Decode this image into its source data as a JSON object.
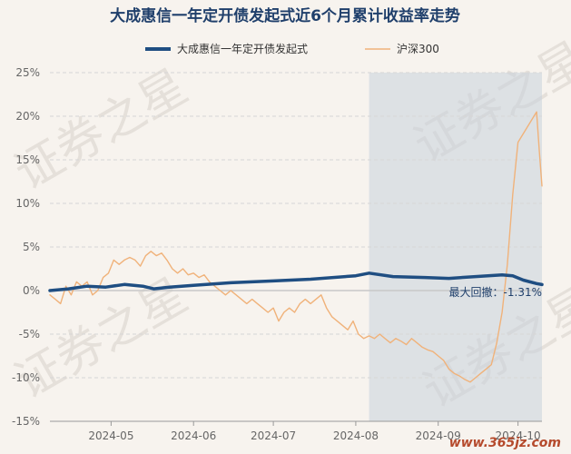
{
  "watermark": "证券之星",
  "site_mark": "www.365jz.com",
  "chart_data": {
    "type": "line",
    "title": "大成惠信一年定开债发起式近6个月累计收益率走势",
    "xlabel": "",
    "ylabel": "",
    "ylim": [
      -15,
      25
    ],
    "yticks": [
      25,
      20,
      15,
      10,
      5,
      0,
      -5,
      -10,
      -15
    ],
    "ytick_labels": [
      "25%",
      "20%",
      "15%",
      "10%",
      "5%",
      "0%",
      "-5%",
      "-10%",
      "-15%"
    ],
    "x_range": [
      "2024-04-08",
      "2024-10-10"
    ],
    "xtick_labels": [
      "2024-05",
      "2024-06",
      "2024-07",
      "2024-08",
      "2024-09",
      "2024-10"
    ],
    "xtick_dates": [
      "2024-05-01",
      "2024-06-01",
      "2024-07-01",
      "2024-08-01",
      "2024-09-01",
      "2024-10-01"
    ],
    "grid": true,
    "legend_position": "top-center",
    "shaded_region": {
      "start": "2024-08-06",
      "end": "2024-10-10"
    },
    "annotation": "最大回撤：-1.31%",
    "series": [
      {
        "name": "大成惠信一年定开债发起式",
        "color": "#1f4e82",
        "points": [
          [
            "2024-04-08",
            0.0
          ],
          [
            "2024-04-15",
            0.2
          ],
          [
            "2024-04-22",
            0.5
          ],
          [
            "2024-04-29",
            0.4
          ],
          [
            "2024-05-06",
            0.7
          ],
          [
            "2024-05-13",
            0.5
          ],
          [
            "2024-05-17",
            0.2
          ],
          [
            "2024-05-23",
            0.4
          ],
          [
            "2024-06-01",
            0.6
          ],
          [
            "2024-06-15",
            0.9
          ],
          [
            "2024-07-01",
            1.1
          ],
          [
            "2024-07-15",
            1.3
          ],
          [
            "2024-08-01",
            1.7
          ],
          [
            "2024-08-06",
            2.0
          ],
          [
            "2024-08-15",
            1.6
          ],
          [
            "2024-08-27",
            1.5
          ],
          [
            "2024-09-05",
            1.4
          ],
          [
            "2024-09-15",
            1.6
          ],
          [
            "2024-09-25",
            1.8
          ],
          [
            "2024-09-29",
            1.7
          ],
          [
            "2024-10-03",
            1.2
          ],
          [
            "2024-10-08",
            0.8
          ],
          [
            "2024-10-10",
            0.69
          ]
        ]
      },
      {
        "name": "沪深300",
        "color": "#f0b27a",
        "points": [
          [
            "2024-04-08",
            -0.5
          ],
          [
            "2024-04-10",
            -1.0
          ],
          [
            "2024-04-12",
            -1.5
          ],
          [
            "2024-04-14",
            0.5
          ],
          [
            "2024-04-16",
            -0.5
          ],
          [
            "2024-04-18",
            1.0
          ],
          [
            "2024-04-20",
            0.5
          ],
          [
            "2024-04-22",
            1.0
          ],
          [
            "2024-04-24",
            -0.5
          ],
          [
            "2024-04-26",
            0.0
          ],
          [
            "2024-04-28",
            1.5
          ],
          [
            "2024-04-30",
            2.0
          ],
          [
            "2024-05-02",
            3.5
          ],
          [
            "2024-05-04",
            3.0
          ],
          [
            "2024-05-06",
            3.5
          ],
          [
            "2024-05-08",
            3.8
          ],
          [
            "2024-05-10",
            3.5
          ],
          [
            "2024-05-12",
            2.8
          ],
          [
            "2024-05-14",
            4.0
          ],
          [
            "2024-05-16",
            4.5
          ],
          [
            "2024-05-18",
            4.0
          ],
          [
            "2024-05-20",
            4.3
          ],
          [
            "2024-05-22",
            3.5
          ],
          [
            "2024-05-24",
            2.5
          ],
          [
            "2024-05-26",
            2.0
          ],
          [
            "2024-05-28",
            2.5
          ],
          [
            "2024-05-30",
            1.8
          ],
          [
            "2024-06-01",
            2.0
          ],
          [
            "2024-06-03",
            1.5
          ],
          [
            "2024-06-05",
            1.8
          ],
          [
            "2024-06-07",
            1.0
          ],
          [
            "2024-06-09",
            0.5
          ],
          [
            "2024-06-11",
            0.0
          ],
          [
            "2024-06-13",
            -0.5
          ],
          [
            "2024-06-15",
            0.0
          ],
          [
            "2024-06-17",
            -0.5
          ],
          [
            "2024-06-19",
            -1.0
          ],
          [
            "2024-06-21",
            -1.5
          ],
          [
            "2024-06-23",
            -1.0
          ],
          [
            "2024-06-25",
            -1.5
          ],
          [
            "2024-06-27",
            -2.0
          ],
          [
            "2024-06-29",
            -2.5
          ],
          [
            "2024-07-01",
            -2.0
          ],
          [
            "2024-07-03",
            -3.5
          ],
          [
            "2024-07-05",
            -2.5
          ],
          [
            "2024-07-07",
            -2.0
          ],
          [
            "2024-07-09",
            -2.5
          ],
          [
            "2024-07-11",
            -1.5
          ],
          [
            "2024-07-13",
            -1.0
          ],
          [
            "2024-07-15",
            -1.5
          ],
          [
            "2024-07-17",
            -1.0
          ],
          [
            "2024-07-19",
            -0.5
          ],
          [
            "2024-07-21",
            -2.0
          ],
          [
            "2024-07-23",
            -3.0
          ],
          [
            "2024-07-25",
            -3.5
          ],
          [
            "2024-07-27",
            -4.0
          ],
          [
            "2024-07-29",
            -4.5
          ],
          [
            "2024-07-31",
            -3.5
          ],
          [
            "2024-08-02",
            -5.0
          ],
          [
            "2024-08-04",
            -5.5
          ],
          [
            "2024-08-06",
            -5.2
          ],
          [
            "2024-08-08",
            -5.5
          ],
          [
            "2024-08-10",
            -5.0
          ],
          [
            "2024-08-12",
            -5.5
          ],
          [
            "2024-08-14",
            -6.0
          ],
          [
            "2024-08-16",
            -5.5
          ],
          [
            "2024-08-18",
            -5.8
          ],
          [
            "2024-08-20",
            -6.2
          ],
          [
            "2024-08-22",
            -5.5
          ],
          [
            "2024-08-24",
            -6.0
          ],
          [
            "2024-08-26",
            -6.5
          ],
          [
            "2024-08-28",
            -6.8
          ],
          [
            "2024-08-30",
            -7.0
          ],
          [
            "2024-09-01",
            -7.5
          ],
          [
            "2024-09-03",
            -8.0
          ],
          [
            "2024-09-05",
            -9.0
          ],
          [
            "2024-09-07",
            -9.5
          ],
          [
            "2024-09-09",
            -9.8
          ],
          [
            "2024-09-11",
            -10.2
          ],
          [
            "2024-09-13",
            -10.5
          ],
          [
            "2024-09-15",
            -10.0
          ],
          [
            "2024-09-17",
            -9.5
          ],
          [
            "2024-09-19",
            -9.0
          ],
          [
            "2024-09-21",
            -8.5
          ],
          [
            "2024-09-23",
            -6.0
          ],
          [
            "2024-09-25",
            -2.5
          ],
          [
            "2024-09-27",
            3.0
          ],
          [
            "2024-09-29",
            11.0
          ],
          [
            "2024-10-01",
            17.0
          ],
          [
            "2024-10-08",
            20.5
          ],
          [
            "2024-10-09",
            16.0
          ],
          [
            "2024-10-10",
            12.0
          ]
        ]
      }
    ]
  }
}
